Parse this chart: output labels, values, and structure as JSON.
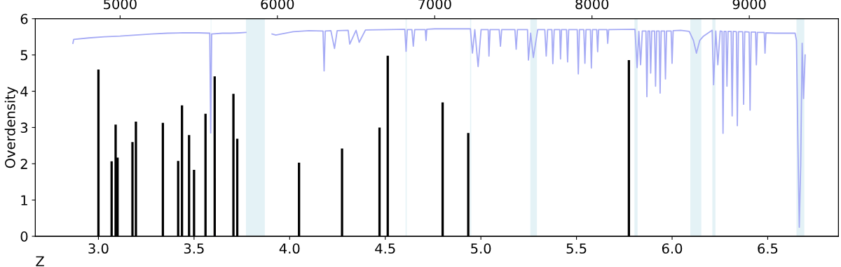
{
  "chart_data": {
    "type": "bar",
    "xlabel": "Z",
    "ylabel": "Overdensity",
    "xlim": [
      2.67,
      6.87
    ],
    "xticks": [
      {
        "value": 3.0,
        "label": "3.0"
      },
      {
        "value": 3.5,
        "label": "3.5"
      },
      {
        "value": 4.0,
        "label": "4.0"
      },
      {
        "value": 4.5,
        "label": "4.5"
      },
      {
        "value": 5.0,
        "label": "5.0"
      },
      {
        "value": 5.5,
        "label": "5.5"
      },
      {
        "value": 6.0,
        "label": "6.0"
      },
      {
        "value": 6.5,
        "label": "6.5"
      }
    ],
    "x2lim": [
      4461,
      9567
    ],
    "x2ticks": [
      5000,
      6000,
      7000,
      8000,
      9000
    ],
    "ylim": [
      0,
      6
    ],
    "yticks": [
      0,
      1,
      2,
      3,
      4,
      5,
      6
    ],
    "grid": false,
    "series": [
      {
        "color": "#000000",
        "x": [
          3.0,
          3.069,
          3.09,
          3.1,
          3.178,
          3.196,
          3.337,
          3.417,
          3.437,
          3.474,
          3.5,
          3.56,
          3.608,
          3.706,
          3.726,
          4.049,
          4.274,
          4.47,
          4.513,
          4.8,
          4.934,
          5.774
        ],
        "values": [
          4.6,
          2.07,
          3.08,
          2.17,
          2.6,
          3.16,
          3.13,
          2.08,
          3.61,
          2.79,
          1.83,
          3.38,
          4.41,
          3.93,
          2.69,
          2.03,
          2.42,
          3.0,
          4.98,
          3.69,
          2.85,
          4.86
        ]
      },
      {
        "type": "line",
        "axis": "x2",
        "color": "#a6abf5",
        "x": [
          4700,
          4705,
          4800,
          4900,
          5000,
          5100,
          5200,
          5300,
          5400,
          5500,
          5570,
          5576,
          5582,
          5650,
          5700,
          5760,
          5800,
          5920,
          5966,
          5990,
          6100,
          6200,
          6290,
          6297,
          6304,
          6340,
          6363,
          6380,
          6450,
          6460,
          6500,
          6520,
          6560,
          6700,
          6810,
          6818,
          6826,
          6855,
          6864,
          6873,
          6940,
          6945,
          6950,
          7000,
          7227,
          7240,
          7255,
          7276,
          7295,
          7340,
          7345,
          7352,
          7410,
          7418,
          7426,
          7510,
          7518,
          7526,
          7590,
          7596,
          7610,
          7627,
          7655,
          7700,
          7709,
          7718,
          7745,
          7751,
          7760,
          7795,
          7800,
          7806,
          7838,
          7845,
          7852,
          7906,
          7913,
          7920,
          7948,
          7955,
          7962,
          7990,
          7996,
          8003,
          8030,
          8036,
          8042,
          8095,
          8100,
          8106,
          8273,
          8287,
          8298,
          8309,
          8320,
          8343,
          8349,
          8356,
          8367,
          8373,
          8380,
          8398,
          8404,
          8411,
          8427,
          8433,
          8440,
          8461,
          8467,
          8474,
          8503,
          8509,
          8516,
          8564,
          8618,
          8645,
          8664,
          8685,
          8709,
          8764,
          8773,
          8787,
          8800,
          8815,
          8827,
          8833,
          8840,
          8852,
          8858,
          8865,
          8885,
          8891,
          8898,
          8918,
          8924,
          8931,
          8958,
          8964,
          8971,
          8999,
          9005,
          9012,
          9040,
          9045,
          9051,
          9095,
          9100,
          9106,
          9164,
          9291,
          9300,
          9309,
          9318,
          9327,
          9336,
          9345,
          9355
        ],
        "values": [
          5.32,
          5.43,
          5.47,
          5.5,
          5.52,
          5.55,
          5.58,
          5.6,
          5.61,
          5.61,
          5.6,
          2.85,
          5.58,
          5.6,
          5.6,
          5.61,
          5.62,
          null,
          5.58,
          5.55,
          5.64,
          5.67,
          5.66,
          4.56,
          5.66,
          5.67,
          5.18,
          5.67,
          5.68,
          5.3,
          5.68,
          5.35,
          5.69,
          5.7,
          5.71,
          5.1,
          5.7,
          5.7,
          5.24,
          5.7,
          5.7,
          5.4,
          5.71,
          5.72,
          5.72,
          5.05,
          5.7,
          4.68,
          5.7,
          5.7,
          4.97,
          5.7,
          5.7,
          5.24,
          5.7,
          5.7,
          5.16,
          5.7,
          5.7,
          4.86,
          5.6,
          4.93,
          5.7,
          5.7,
          4.97,
          5.7,
          5.7,
          4.76,
          5.7,
          5.7,
          4.89,
          5.7,
          5.7,
          4.81,
          5.7,
          5.7,
          4.48,
          5.7,
          5.7,
          4.77,
          5.7,
          5.7,
          4.64,
          5.7,
          5.7,
          5.09,
          5.7,
          5.7,
          5.32,
          5.7,
          5.71,
          4.65,
          5.65,
          4.73,
          5.66,
          5.66,
          3.85,
          5.66,
          5.66,
          4.5,
          5.66,
          5.66,
          4.14,
          5.66,
          5.66,
          3.95,
          5.66,
          5.66,
          4.34,
          5.66,
          5.66,
          4.77,
          5.67,
          5.68,
          5.65,
          5.4,
          5.05,
          5.4,
          5.52,
          5.68,
          4.18,
          5.66,
          4.73,
          5.66,
          5.65,
          2.84,
          5.65,
          5.65,
          4.14,
          5.65,
          5.65,
          3.32,
          5.65,
          5.64,
          3.05,
          5.64,
          5.64,
          3.64,
          5.64,
          5.63,
          3.48,
          5.63,
          5.63,
          4.73,
          5.62,
          5.62,
          5.05,
          5.61,
          5.6,
          5.6,
          5.4,
          2.6,
          0.25,
          2.0,
          5.32,
          3.8,
          5.0
        ]
      }
    ],
    "bands": [
      {
        "axis": "x2",
        "from": 5800,
        "to": 5920,
        "color": "#e4f2f6"
      },
      {
        "axis": "x2",
        "from": 5576,
        "to": 5580,
        "color": "#e4f2f6"
      },
      {
        "axis": "x2",
        "from": 6815,
        "to": 6822,
        "color": "#e4f2f6"
      },
      {
        "axis": "x2",
        "from": 7225,
        "to": 7232,
        "color": "#e4f2f6"
      },
      {
        "axis": "x2",
        "from": 7608,
        "to": 7650,
        "color": "#e4f2f6"
      },
      {
        "axis": "x2",
        "from": 8270,
        "to": 8290,
        "color": "#e4f2f6"
      },
      {
        "axis": "x2",
        "from": 8625,
        "to": 8695,
        "color": "#e4f2f6"
      },
      {
        "axis": "x2",
        "from": 8765,
        "to": 8785,
        "color": "#e4f2f6"
      },
      {
        "axis": "x2",
        "from": 9300,
        "to": 9350,
        "color": "#e4f2f6"
      }
    ]
  }
}
